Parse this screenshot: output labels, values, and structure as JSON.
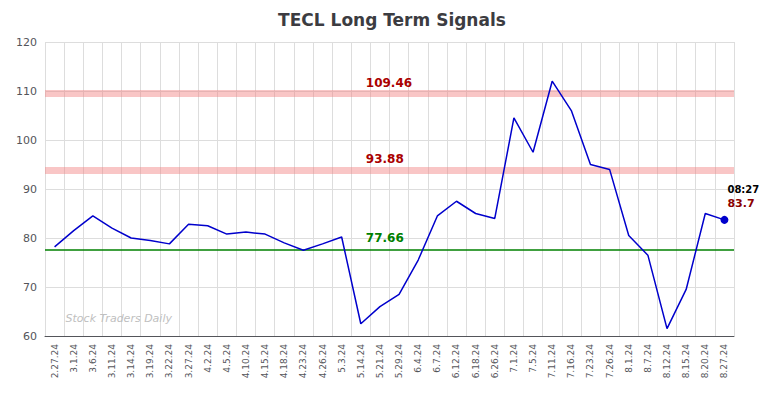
{
  "chart_data": {
    "type": "line",
    "title": "TECL Long Term Signals",
    "categories": [
      "2.27.24",
      "3.1.24",
      "3.6.24",
      "3.11.24",
      "3.14.24",
      "3.19.24",
      "3.22.24",
      "3.27.24",
      "4.2.24",
      "4.5.24",
      "4.10.24",
      "4.15.24",
      "4.18.24",
      "4.23.24",
      "4.26.24",
      "5.3.24",
      "5.14.24",
      "5.21.24",
      "5.29.24",
      "6.4.24",
      "6.7.24",
      "6.12.24",
      "6.18.24",
      "6.26.24",
      "7.1.24",
      "7.5.24",
      "7.11.24",
      "7.16.24",
      "7.23.24",
      "7.26.24",
      "8.1.24",
      "8.7.24",
      "8.12.24",
      "8.15.24",
      "8.20.24",
      "8.27.24"
    ],
    "values": [
      78.2,
      81.5,
      84.5,
      82.0,
      80.0,
      79.5,
      78.8,
      82.8,
      82.5,
      80.8,
      81.2,
      80.8,
      79.0,
      77.5,
      78.8,
      80.2,
      62.5,
      66.0,
      68.5,
      75.5,
      84.5,
      87.5,
      85.0,
      84.0,
      104.5,
      97.5,
      112.0,
      106.0,
      95.0,
      94.0,
      80.5,
      76.5,
      61.5,
      69.5,
      85.0,
      83.7
    ],
    "color": "#0000cc",
    "hlines": [
      {
        "y": 109.46,
        "color": "#f28080"
      },
      {
        "y": 93.88,
        "color": "#f28080"
      },
      {
        "y": 77.66,
        "color": "#008000"
      }
    ],
    "annotations": [
      {
        "text": "109.46",
        "x": "5.14.24",
        "y": 109.46,
        "color": "#aa0000"
      },
      {
        "text": "93.88",
        "x": "5.14.24",
        "y": 93.88,
        "color": "#aa0000"
      },
      {
        "text": "77.66",
        "x": "5.14.24",
        "y": 77.66,
        "color": "#008000"
      },
      {
        "text": "08:27",
        "x": "8.27.24",
        "y": 83.7,
        "color": "#000000"
      },
      {
        "text": "83.7",
        "x": "8.27.24",
        "y": 83.7,
        "color": "#8b0000"
      },
      {
        "text": "Stock Traders Daily",
        "x": "2.27.24",
        "y": 63.5,
        "color": "#c0c0c0"
      }
    ],
    "ylim": [
      60,
      120
    ],
    "yticks": [
      60,
      70,
      80,
      90,
      100,
      110,
      120
    ],
    "grid": true
  }
}
